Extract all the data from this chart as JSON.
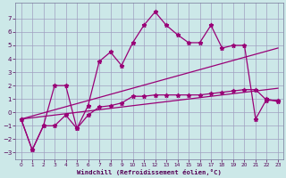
{
  "title": "",
  "xlabel": "Windchill (Refroidissement éolien,°C)",
  "background_color": "#cce8e8",
  "grid_color": "#a0a0c0",
  "line_color": "#990077",
  "xlim": [
    -0.5,
    23.5
  ],
  "ylim": [
    -3.5,
    8.2
  ],
  "yticks": [
    -3,
    -2,
    -1,
    0,
    1,
    2,
    3,
    4,
    5,
    6,
    7
  ],
  "xticks": [
    0,
    1,
    2,
    3,
    4,
    5,
    6,
    7,
    8,
    9,
    10,
    11,
    12,
    13,
    14,
    15,
    16,
    17,
    18,
    19,
    20,
    21,
    22,
    23
  ],
  "line1_x": [
    0,
    1,
    2,
    3,
    4,
    5,
    6,
    7,
    8,
    9,
    10,
    11,
    12,
    13,
    14,
    15,
    16,
    17,
    18,
    19,
    20,
    21,
    22,
    23
  ],
  "line1_y": [
    -0.5,
    -2.8,
    -1.0,
    -1.0,
    -0.2,
    -1.2,
    -0.2,
    0.4,
    0.5,
    0.7,
    1.2,
    1.2,
    1.3,
    1.3,
    1.3,
    1.3,
    1.3,
    1.4,
    1.5,
    1.6,
    1.7,
    1.7,
    0.9,
    0.9
  ],
  "line2_x": [
    0,
    1,
    2,
    3,
    4,
    5,
    6,
    7,
    8,
    9,
    10,
    11,
    12,
    13,
    14,
    15,
    16,
    17,
    18,
    19,
    20,
    21,
    22,
    23
  ],
  "line2_y": [
    -0.5,
    -2.8,
    -1.0,
    2.0,
    2.0,
    -1.2,
    0.5,
    3.8,
    4.5,
    3.5,
    5.2,
    6.5,
    7.5,
    6.5,
    5.8,
    5.2,
    5.2,
    6.5,
    4.8,
    5.0,
    5.0,
    -0.5,
    1.0,
    0.8
  ],
  "line3_x": [
    0,
    23
  ],
  "line3_y": [
    -0.5,
    4.8
  ],
  "line4_x": [
    0,
    23
  ],
  "line4_y": [
    -0.5,
    1.8
  ]
}
